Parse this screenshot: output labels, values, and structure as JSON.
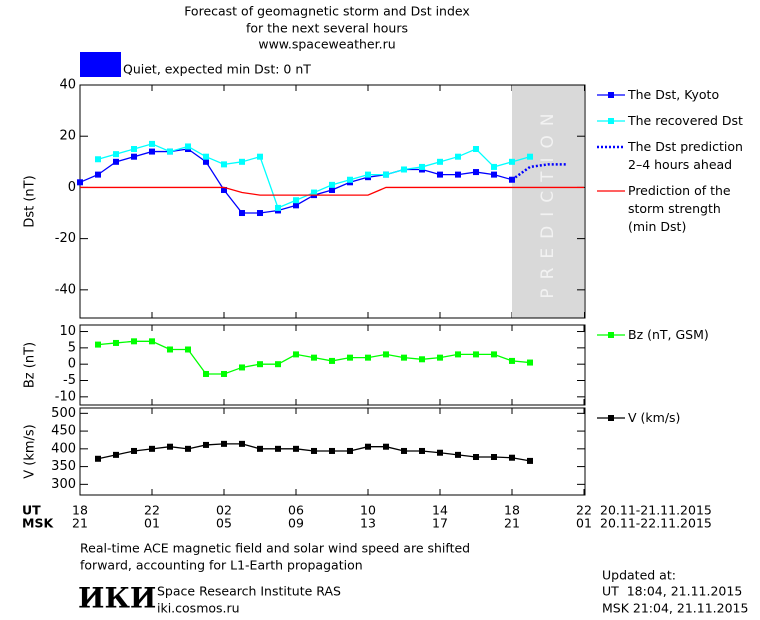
{
  "header": {
    "title_lines": [
      "Forecast of geomagnetic storm and Dst index",
      "for the next several hours",
      "www.spaceweather.ru"
    ],
    "status": "Quiet, expected min Dst: 0 nT"
  },
  "x_axis": {
    "ut_label": "UT",
    "msk_label": "MSK",
    "ut": [
      "18",
      null,
      null,
      null,
      "22",
      null,
      null,
      null,
      "02",
      null,
      null,
      null,
      "06",
      null,
      null,
      null,
      "10",
      null,
      null,
      null,
      "14",
      null,
      null,
      null,
      "18",
      null,
      null,
      null,
      "22"
    ],
    "msk": [
      "21",
      null,
      null,
      null,
      "01",
      null,
      null,
      null,
      "05",
      null,
      null,
      null,
      "09",
      null,
      null,
      null,
      "13",
      null,
      null,
      null,
      "17",
      null,
      null,
      null,
      "21",
      null,
      null,
      null,
      "01"
    ],
    "ut_range": "20.11-21.11.2015",
    "msk_range": "20.11-22.11.2015"
  },
  "chart_data": [
    {
      "type": "line",
      "y_label": "Dst (nT)",
      "ylim": [
        -51,
        40
      ],
      "yticks": [
        -40,
        -20,
        0,
        20,
        40
      ],
      "prediction_region": [
        24,
        28
      ],
      "prediction_text": "PREDICTION",
      "series": [
        {
          "name": "The Dst, Kyoto",
          "color": "#0000ff",
          "marker": true,
          "dash": false,
          "values": [
            2,
            5,
            10,
            12,
            14,
            14,
            15,
            10,
            -1,
            -10,
            -10,
            -9,
            -7,
            -3,
            -1,
            2,
            4,
            5,
            7,
            7,
            5,
            5,
            6,
            5,
            3,
            null,
            null,
            null,
            null
          ]
        },
        {
          "name": "The recovered Dst",
          "color": "#00ffff",
          "marker": true,
          "dash": false,
          "values": [
            null,
            11,
            13,
            15,
            17,
            14,
            16,
            12,
            9,
            10,
            12,
            -8,
            -5,
            -2,
            1,
            3,
            5,
            5,
            7,
            8,
            10,
            12,
            15,
            8,
            10,
            12,
            null,
            null,
            null
          ]
        },
        {
          "name": "The Dst prediction\n2–4 hours ahead",
          "color": "#0000ff",
          "marker": false,
          "dash": true,
          "values": [
            null,
            null,
            null,
            null,
            null,
            null,
            null,
            null,
            null,
            null,
            null,
            null,
            null,
            null,
            null,
            null,
            null,
            null,
            null,
            null,
            null,
            null,
            null,
            null,
            3,
            8,
            9,
            9,
            null
          ]
        },
        {
          "name": "Prediction of the\nstorm strength\n(min Dst)",
          "color": "#ff0000",
          "marker": false,
          "dash": false,
          "values": [
            0,
            0,
            0,
            0,
            0,
            0,
            0,
            0,
            0,
            -2,
            -3,
            -3,
            -3,
            -3,
            -3,
            -3,
            -3,
            0,
            0,
            0,
            0,
            0,
            0,
            0,
            0,
            0,
            0,
            0,
            0
          ]
        }
      ]
    },
    {
      "type": "line",
      "y_label": "Bz (nT)",
      "ylim": [
        -12.5,
        12
      ],
      "yticks": [
        -10,
        -5,
        0,
        5,
        10
      ],
      "series": [
        {
          "name": "Bz (nT, GSM)",
          "color": "#00ff00",
          "marker": true,
          "dash": false,
          "values": [
            null,
            6,
            6.5,
            7,
            7,
            4.5,
            4.5,
            -3,
            -3,
            -1,
            0,
            0,
            3,
            2,
            1,
            2,
            2,
            3,
            2,
            1.5,
            2,
            3,
            3,
            3,
            1,
            0.5,
            null,
            null,
            null
          ]
        }
      ]
    },
    {
      "type": "line",
      "y_label": "V (km/s)",
      "ylim": [
        270,
        515
      ],
      "yticks": [
        300,
        350,
        400,
        450,
        500
      ],
      "series": [
        {
          "name": "V (km/s)",
          "color": "#000000",
          "marker": true,
          "dash": false,
          "values": [
            null,
            372,
            383,
            394,
            400,
            406,
            400,
            411,
            414,
            414,
            400,
            400,
            400,
            394,
            394,
            394,
            406,
            406,
            394,
            394,
            389,
            383,
            377,
            377,
            375,
            366,
            null,
            null,
            null
          ]
        }
      ]
    }
  ],
  "footer": {
    "note_lines": [
      "Real-time ACE magnetic field and solar wind speed are shifted",
      "forward, accounting for L1-Earth propagation"
    ],
    "logo": "ИКИ",
    "institute": "Space Research Institute RAS",
    "site": "iki.cosmos.ru",
    "updated_label": "Updated at:",
    "updated_ut": "UT  18:04, 21.11.2015",
    "updated_msk": "MSK 21:04, 21.11.2015"
  }
}
